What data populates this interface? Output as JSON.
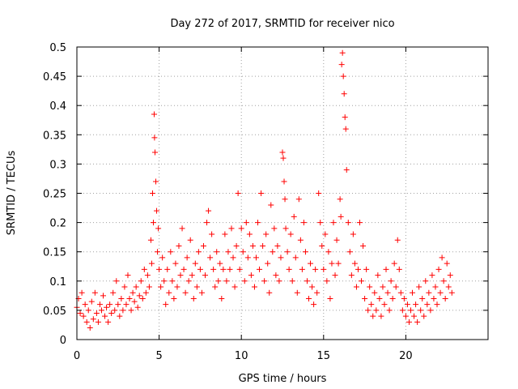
{
  "chart_data": {
    "type": "scatter",
    "title": "Day 272 of 2017, SRMTID for receiver nico",
    "xlabel": "GPS time / hours",
    "ylabel": "SRMTID / TECUs",
    "xlim": [
      0,
      25
    ],
    "ylim": [
      0,
      0.5
    ],
    "xticks": [
      "0",
      "5",
      "10",
      "15",
      "20"
    ],
    "yticks": [
      "0",
      "0.05",
      "0.1",
      "0.15",
      "0.2",
      "0.25",
      "0.3",
      "0.35",
      "0.4",
      "0.45",
      "0.5"
    ],
    "grid": true,
    "marker": "+",
    "color": "#ff0000",
    "series": [
      {
        "name": "SRMTID",
        "points": [
          [
            0.0,
            0.055
          ],
          [
            0.1,
            0.07
          ],
          [
            0.2,
            0.045
          ],
          [
            0.3,
            0.08
          ],
          [
            0.4,
            0.04
          ],
          [
            0.5,
            0.06
          ],
          [
            0.6,
            0.03
          ],
          [
            0.7,
            0.05
          ],
          [
            0.8,
            0.02
          ],
          [
            0.9,
            0.065
          ],
          [
            1.0,
            0.035
          ],
          [
            1.1,
            0.08
          ],
          [
            1.2,
            0.045
          ],
          [
            1.3,
            0.03
          ],
          [
            1.4,
            0.06
          ],
          [
            1.5,
            0.05
          ],
          [
            1.6,
            0.075
          ],
          [
            1.7,
            0.04
          ],
          [
            1.8,
            0.055
          ],
          [
            1.9,
            0.03
          ],
          [
            2.0,
            0.06
          ],
          [
            2.1,
            0.045
          ],
          [
            2.2,
            0.08
          ],
          [
            2.3,
            0.05
          ],
          [
            2.4,
            0.1
          ],
          [
            2.5,
            0.06
          ],
          [
            2.6,
            0.04
          ],
          [
            2.7,
            0.07
          ],
          [
            2.8,
            0.05
          ],
          [
            2.9,
            0.09
          ],
          [
            3.0,
            0.06
          ],
          [
            3.1,
            0.11
          ],
          [
            3.2,
            0.07
          ],
          [
            3.3,
            0.05
          ],
          [
            3.4,
            0.08
          ],
          [
            3.5,
            0.065
          ],
          [
            3.6,
            0.09
          ],
          [
            3.7,
            0.055
          ],
          [
            3.8,
            0.075
          ],
          [
            3.9,
            0.1
          ],
          [
            4.0,
            0.07
          ],
          [
            4.1,
            0.12
          ],
          [
            4.2,
            0.08
          ],
          [
            4.3,
            0.11
          ],
          [
            4.4,
            0.09
          ],
          [
            4.5,
            0.17
          ],
          [
            4.55,
            0.13
          ],
          [
            4.6,
            0.25
          ],
          [
            4.65,
            0.2
          ],
          [
            4.7,
            0.385
          ],
          [
            4.72,
            0.345
          ],
          [
            4.75,
            0.32
          ],
          [
            4.8,
            0.27
          ],
          [
            4.85,
            0.22
          ],
          [
            4.9,
            0.15
          ],
          [
            4.95,
            0.19
          ],
          [
            5.0,
            0.12
          ],
          [
            5.1,
            0.09
          ],
          [
            5.2,
            0.14
          ],
          [
            5.3,
            0.1
          ],
          [
            5.4,
            0.06
          ],
          [
            5.5,
            0.12
          ],
          [
            5.6,
            0.08
          ],
          [
            5.7,
            0.15
          ],
          [
            5.8,
            0.1
          ],
          [
            5.9,
            0.07
          ],
          [
            6.0,
            0.13
          ],
          [
            6.1,
            0.09
          ],
          [
            6.2,
            0.16
          ],
          [
            6.3,
            0.11
          ],
          [
            6.4,
            0.19
          ],
          [
            6.5,
            0.12
          ],
          [
            6.6,
            0.08
          ],
          [
            6.7,
            0.14
          ],
          [
            6.8,
            0.1
          ],
          [
            6.9,
            0.17
          ],
          [
            7.0,
            0.11
          ],
          [
            7.1,
            0.07
          ],
          [
            7.2,
            0.13
          ],
          [
            7.3,
            0.09
          ],
          [
            7.4,
            0.15
          ],
          [
            7.5,
            0.12
          ],
          [
            7.6,
            0.08
          ],
          [
            7.7,
            0.16
          ],
          [
            7.8,
            0.11
          ],
          [
            7.9,
            0.2
          ],
          [
            8.0,
            0.22
          ],
          [
            8.1,
            0.14
          ],
          [
            8.2,
            0.18
          ],
          [
            8.3,
            0.12
          ],
          [
            8.4,
            0.09
          ],
          [
            8.5,
            0.15
          ],
          [
            8.6,
            0.1
          ],
          [
            8.7,
            0.13
          ],
          [
            8.8,
            0.07
          ],
          [
            8.9,
            0.12
          ],
          [
            9.0,
            0.18
          ],
          [
            9.1,
            0.1
          ],
          [
            9.2,
            0.15
          ],
          [
            9.3,
            0.12
          ],
          [
            9.4,
            0.19
          ],
          [
            9.5,
            0.14
          ],
          [
            9.6,
            0.09
          ],
          [
            9.7,
            0.16
          ],
          [
            9.8,
            0.25
          ],
          [
            9.9,
            0.12
          ],
          [
            10.0,
            0.19
          ],
          [
            10.1,
            0.15
          ],
          [
            10.2,
            0.1
          ],
          [
            10.3,
            0.2
          ],
          [
            10.4,
            0.14
          ],
          [
            10.5,
            0.18
          ],
          [
            10.6,
            0.11
          ],
          [
            10.7,
            0.16
          ],
          [
            10.8,
            0.09
          ],
          [
            10.9,
            0.14
          ],
          [
            11.0,
            0.2
          ],
          [
            11.1,
            0.12
          ],
          [
            11.2,
            0.25
          ],
          [
            11.3,
            0.16
          ],
          [
            11.4,
            0.1
          ],
          [
            11.5,
            0.18
          ],
          [
            11.6,
            0.13
          ],
          [
            11.7,
            0.08
          ],
          [
            11.8,
            0.23
          ],
          [
            11.9,
            0.15
          ],
          [
            12.0,
            0.19
          ],
          [
            12.1,
            0.11
          ],
          [
            12.2,
            0.16
          ],
          [
            12.3,
            0.1
          ],
          [
            12.4,
            0.14
          ],
          [
            12.5,
            0.32
          ],
          [
            12.55,
            0.31
          ],
          [
            12.6,
            0.27
          ],
          [
            12.65,
            0.24
          ],
          [
            12.7,
            0.19
          ],
          [
            12.8,
            0.15
          ],
          [
            12.9,
            0.12
          ],
          [
            13.0,
            0.18
          ],
          [
            13.1,
            0.1
          ],
          [
            13.2,
            0.21
          ],
          [
            13.3,
            0.14
          ],
          [
            13.4,
            0.08
          ],
          [
            13.5,
            0.24
          ],
          [
            13.6,
            0.17
          ],
          [
            13.7,
            0.12
          ],
          [
            13.8,
            0.2
          ],
          [
            13.9,
            0.15
          ],
          [
            14.0,
            0.1
          ],
          [
            14.1,
            0.07
          ],
          [
            14.2,
            0.13
          ],
          [
            14.3,
            0.09
          ],
          [
            14.4,
            0.06
          ],
          [
            14.5,
            0.12
          ],
          [
            14.6,
            0.08
          ],
          [
            14.7,
            0.25
          ],
          [
            14.8,
            0.2
          ],
          [
            14.9,
            0.16
          ],
          [
            15.0,
            0.12
          ],
          [
            15.1,
            0.18
          ],
          [
            15.2,
            0.1
          ],
          [
            15.3,
            0.15
          ],
          [
            15.4,
            0.07
          ],
          [
            15.5,
            0.13
          ],
          [
            15.6,
            0.2
          ],
          [
            15.7,
            0.11
          ],
          [
            15.8,
            0.17
          ],
          [
            15.9,
            0.13
          ],
          [
            16.0,
            0.24
          ],
          [
            16.05,
            0.21
          ],
          [
            16.1,
            0.47
          ],
          [
            16.15,
            0.49
          ],
          [
            16.2,
            0.45
          ],
          [
            16.25,
            0.42
          ],
          [
            16.3,
            0.38
          ],
          [
            16.35,
            0.36
          ],
          [
            16.4,
            0.29
          ],
          [
            16.5,
            0.2
          ],
          [
            16.6,
            0.15
          ],
          [
            16.7,
            0.11
          ],
          [
            16.8,
            0.18
          ],
          [
            16.9,
            0.13
          ],
          [
            17.0,
            0.09
          ],
          [
            17.1,
            0.12
          ],
          [
            17.2,
            0.2
          ],
          [
            17.3,
            0.1
          ],
          [
            17.4,
            0.16
          ],
          [
            17.5,
            0.07
          ],
          [
            17.6,
            0.12
          ],
          [
            17.7,
            0.05
          ],
          [
            17.8,
            0.09
          ],
          [
            17.9,
            0.06
          ],
          [
            18.0,
            0.04
          ],
          [
            18.1,
            0.08
          ],
          [
            18.2,
            0.05
          ],
          [
            18.3,
            0.11
          ],
          [
            18.4,
            0.07
          ],
          [
            18.5,
            0.04
          ],
          [
            18.6,
            0.09
          ],
          [
            18.7,
            0.06
          ],
          [
            18.8,
            0.12
          ],
          [
            18.9,
            0.08
          ],
          [
            19.0,
            0.05
          ],
          [
            19.1,
            0.1
          ],
          [
            19.2,
            0.07
          ],
          [
            19.3,
            0.13
          ],
          [
            19.4,
            0.09
          ],
          [
            19.5,
            0.17
          ],
          [
            19.6,
            0.12
          ],
          [
            19.7,
            0.08
          ],
          [
            19.8,
            0.05
          ],
          [
            19.9,
            0.07
          ],
          [
            20.0,
            0.04
          ],
          [
            20.1,
            0.06
          ],
          [
            20.2,
            0.03
          ],
          [
            20.3,
            0.05
          ],
          [
            20.4,
            0.08
          ],
          [
            20.5,
            0.04
          ],
          [
            20.6,
            0.06
          ],
          [
            20.7,
            0.03
          ],
          [
            20.8,
            0.09
          ],
          [
            20.9,
            0.05
          ],
          [
            21.0,
            0.07
          ],
          [
            21.1,
            0.04
          ],
          [
            21.2,
            0.1
          ],
          [
            21.3,
            0.06
          ],
          [
            21.4,
            0.08
          ],
          [
            21.5,
            0.05
          ],
          [
            21.6,
            0.11
          ],
          [
            21.7,
            0.07
          ],
          [
            21.8,
            0.09
          ],
          [
            21.9,
            0.06
          ],
          [
            22.0,
            0.12
          ],
          [
            22.1,
            0.08
          ],
          [
            22.2,
            0.14
          ],
          [
            22.3,
            0.1
          ],
          [
            22.4,
            0.07
          ],
          [
            22.5,
            0.13
          ],
          [
            22.6,
            0.09
          ],
          [
            22.7,
            0.11
          ],
          [
            22.8,
            0.08
          ]
        ]
      }
    ]
  }
}
